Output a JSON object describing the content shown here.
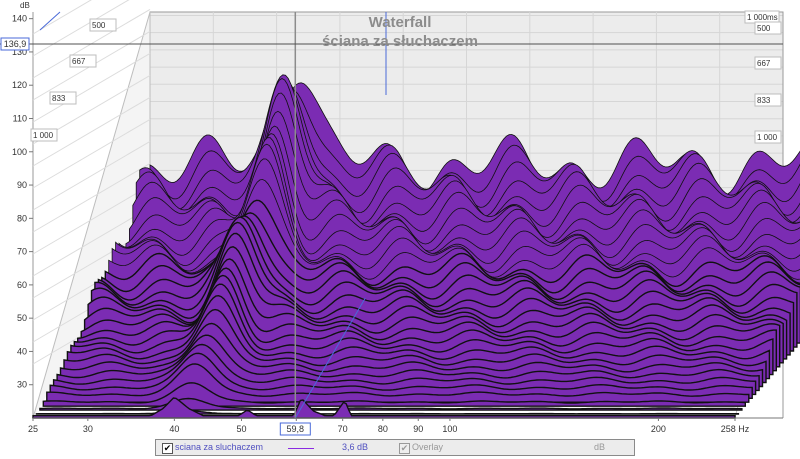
{
  "chart_data": {
    "type": "area",
    "title": "Waterfall",
    "subtitle": "ściana za słuchaczem",
    "ylabel": "dB",
    "y_ticks": [
      "30",
      "40",
      "50",
      "60",
      "70",
      "80",
      "90",
      "100",
      "110",
      "120",
      "130",
      "140"
    ],
    "ylim": [
      20,
      142
    ],
    "x_ticks": [
      "25",
      "30",
      "40",
      "50",
      "60",
      "70",
      "80",
      "90",
      "100",
      "200",
      "258 Hz"
    ],
    "xlim": [
      25,
      258
    ],
    "x_scale": "log",
    "time_axis_unit": "ms",
    "time_ticks_left": [
      "500",
      "667",
      "833",
      "1 000"
    ],
    "time_ticks_right": [
      "1 000ms",
      "500",
      "667",
      "833",
      "1 000"
    ],
    "slice_count": 35,
    "fill_color": "#7b2cb3",
    "outline_color": "#111111",
    "cursor": {
      "x_readout": "59,8",
      "y_readout": "136,9"
    },
    "front_slice": {
      "x": [
        35.0,
        37.0,
        38.5,
        40.0,
        42.0,
        44.0,
        49.5,
        51.0,
        52.5,
        59.5,
        61.0,
        63.5,
        66.0,
        68.0,
        70.5,
        72.0
      ],
      "y": [
        22,
        22,
        28,
        38,
        28,
        22,
        22,
        27,
        22,
        22,
        37,
        26,
        22,
        22,
        35,
        22
      ]
    }
  },
  "legend": {
    "series_name": "sciana za sluchaczem",
    "series_value": "3,6 dB",
    "overlay_label": "Overlay",
    "overlay_unit": "dB",
    "check_mark": "✔"
  }
}
